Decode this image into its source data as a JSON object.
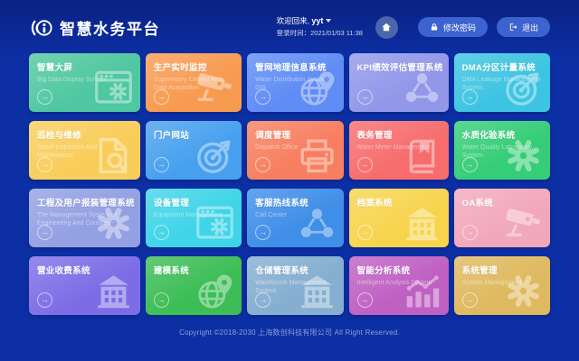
{
  "header": {
    "app_title": "智慧水务平台",
    "welcome_prefix": "欢迎回来, ",
    "username": "yyt",
    "login_time_label": "登录时间：",
    "login_time": "2021/01/03 11:38",
    "change_password_label": "修改密码",
    "logout_label": "退出"
  },
  "colors": {
    "background": "#0c2fa4",
    "pill_button": "#3c63cf"
  },
  "cards": [
    {
      "id": "big-data-screen",
      "title": "智慧大屏",
      "subtitle": "Big Data Display Screen",
      "color": "#4fc7a0",
      "icon": "window-gear"
    },
    {
      "id": "production-monitoring",
      "title": "生产实时监控",
      "subtitle": "Supervisory Control And Data Acquisition",
      "color": "#f79b51",
      "icon": "cctv"
    },
    {
      "id": "pipeline-gis",
      "title": "管网地理信息系统",
      "subtitle": "Water Distribution System GIS",
      "color": "#5f8cf5",
      "icon": "globe-pin"
    },
    {
      "id": "kpi-evaluation",
      "title": "KPI绩效评估管理系统",
      "subtitle": "",
      "color": "#9297ea",
      "icon": "share-nodes"
    },
    {
      "id": "dma-metering",
      "title": "DMA分区计量系统",
      "subtitle": "DMA Leakage Management System",
      "color": "#3dc4e2",
      "icon": "target-dart"
    },
    {
      "id": "inspection-maintenance",
      "title": "巡检与维修",
      "subtitle": "Patrol Inspection And Maintenance",
      "color": "#f9cd5a",
      "icon": "doc-search"
    },
    {
      "id": "portal-website",
      "title": "门户网站",
      "subtitle": "",
      "color": "#47a0ee",
      "icon": "target-dart"
    },
    {
      "id": "dispatch-management",
      "title": "调度管理",
      "subtitle": "Dispatch Office",
      "color": "#f77f5f",
      "icon": "printer"
    },
    {
      "id": "meter-management",
      "title": "表务管理",
      "subtitle": "Water Meter Management",
      "color": "#f76d6d",
      "icon": "book"
    },
    {
      "id": "water-quality-lab",
      "title": "水质化验系统",
      "subtitle": "Water Quality Laboratory System",
      "color": "#35cd77",
      "icon": "gear"
    },
    {
      "id": "engineering-consumer",
      "title": "工程及用户报装管理系统",
      "subtitle": "The Management System of Engineering And Consumer",
      "color": "#93a0e2",
      "icon": "gear"
    },
    {
      "id": "equipment-management",
      "title": "设备管理",
      "subtitle": "Equipment Management",
      "color": "#3fd4e8",
      "icon": "window-gear"
    },
    {
      "id": "call-center",
      "title": "客服热线系统",
      "subtitle": "Call Center",
      "color": "#3f8ee8",
      "icon": "share-nodes"
    },
    {
      "id": "archives-system",
      "title": "档案系统",
      "subtitle": "",
      "color": "#f8d44d",
      "icon": "building"
    },
    {
      "id": "oa-system",
      "title": "OA系统",
      "subtitle": "",
      "color": "#f2a8bc",
      "icon": "cctv"
    },
    {
      "id": "billing-system",
      "title": "营业收费系统",
      "subtitle": "",
      "color": "#7e6ce6",
      "icon": "building"
    },
    {
      "id": "modeling-system",
      "title": "建模系统",
      "subtitle": "",
      "color": "#3cbd55",
      "icon": "globe-pin"
    },
    {
      "id": "warehouse-management",
      "title": "仓储管理系统",
      "subtitle": "Warehouse Management System",
      "color": "#85aed0",
      "icon": "building"
    },
    {
      "id": "intelligent-analysis",
      "title": "智能分析系统",
      "subtitle": "Intelligent Analysis System",
      "color": "#bf60c3",
      "icon": "chart"
    },
    {
      "id": "system-management",
      "title": "系统管理",
      "subtitle": "System Management",
      "color": "#dfb95f",
      "icon": "gear"
    }
  ],
  "footer": {
    "copyright": "Copyright ©2018-2030 上海数创科技有限公司 All Right Reserved."
  }
}
